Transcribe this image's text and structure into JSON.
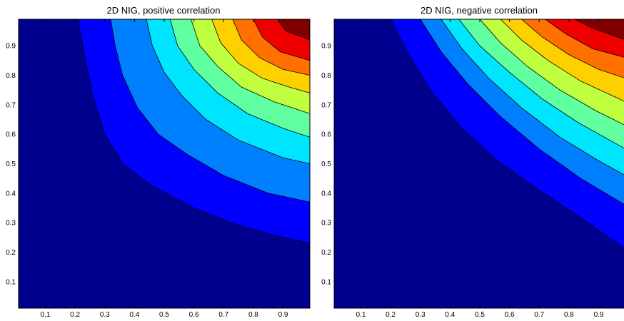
{
  "chart_data": [
    {
      "type": "contour",
      "title": "2D NIG, positive correlation",
      "xlabel": "",
      "ylabel": "",
      "xlim": [
        0.01,
        0.99
      ],
      "ylim": [
        0.01,
        0.99
      ],
      "x_ticks": [
        "0.1",
        "0.2",
        "0.3",
        "0.4",
        "0.5",
        "0.6",
        "0.7",
        "0.8",
        "0.9"
      ],
      "y_ticks": [
        "0.1",
        "0.2",
        "0.3",
        "0.4",
        "0.5",
        "0.6",
        "0.7",
        "0.8",
        "0.9"
      ],
      "colormap": "jet",
      "level_colors": [
        "#00008f",
        "#0000ff",
        "#0080ff",
        "#00e5ff",
        "#60ffa0",
        "#c0ff40",
        "#ffd000",
        "#ff7000",
        "#ee0000",
        "#800000"
      ],
      "contours": [
        {
          "level": 1,
          "points": [
            [
              0.21,
              0.99
            ],
            [
              0.235,
              0.85
            ],
            [
              0.26,
              0.73
            ],
            [
              0.3,
              0.6
            ],
            [
              0.36,
              0.5
            ],
            [
              0.45,
              0.43
            ],
            [
              0.6,
              0.35
            ],
            [
              0.75,
              0.29
            ],
            [
              0.9,
              0.25
            ],
            [
              0.99,
              0.23
            ]
          ]
        },
        {
          "level": 2,
          "points": [
            [
              0.32,
              0.99
            ],
            [
              0.335,
              0.9
            ],
            [
              0.36,
              0.8
            ],
            [
              0.41,
              0.69
            ],
            [
              0.48,
              0.6
            ],
            [
              0.58,
              0.53
            ],
            [
              0.7,
              0.46
            ],
            [
              0.85,
              0.4
            ],
            [
              0.99,
              0.37
            ]
          ]
        },
        {
          "level": 3,
          "points": [
            [
              0.44,
              0.99
            ],
            [
              0.46,
              0.9
            ],
            [
              0.5,
              0.81
            ],
            [
              0.56,
              0.73
            ],
            [
              0.64,
              0.65
            ],
            [
              0.75,
              0.58
            ],
            [
              0.9,
              0.52
            ],
            [
              0.99,
              0.5
            ]
          ]
        },
        {
          "level": 4,
          "points": [
            [
              0.52,
              0.99
            ],
            [
              0.545,
              0.9
            ],
            [
              0.6,
              0.82
            ],
            [
              0.68,
              0.74
            ],
            [
              0.78,
              0.67
            ],
            [
              0.9,
              0.62
            ],
            [
              0.99,
              0.59
            ]
          ]
        },
        {
          "level": 5,
          "points": [
            [
              0.59,
              0.99
            ],
            [
              0.62,
              0.9
            ],
            [
              0.68,
              0.83
            ],
            [
              0.76,
              0.76
            ],
            [
              0.87,
              0.71
            ],
            [
              0.99,
              0.67
            ]
          ]
        },
        {
          "level": 6,
          "points": [
            [
              0.66,
              0.99
            ],
            [
              0.69,
              0.91
            ],
            [
              0.75,
              0.84
            ],
            [
              0.83,
              0.79
            ],
            [
              0.92,
              0.76
            ],
            [
              0.99,
              0.74
            ]
          ]
        },
        {
          "level": 7,
          "points": [
            [
              0.73,
              0.99
            ],
            [
              0.76,
              0.92
            ],
            [
              0.82,
              0.86
            ],
            [
              0.9,
              0.82
            ],
            [
              0.99,
              0.8
            ]
          ]
        },
        {
          "level": 8,
          "points": [
            [
              0.8,
              0.99
            ],
            [
              0.83,
              0.93
            ],
            [
              0.89,
              0.88
            ],
            [
              0.99,
              0.85
            ]
          ]
        },
        {
          "level": 9,
          "points": [
            [
              0.88,
              0.99
            ],
            [
              0.91,
              0.95
            ],
            [
              0.99,
              0.92
            ]
          ]
        }
      ]
    },
    {
      "type": "contour",
      "title": "2D NIG, negative correlation",
      "xlabel": "",
      "ylabel": "",
      "xlim": [
        0.01,
        0.99
      ],
      "ylim": [
        0.01,
        0.99
      ],
      "x_ticks": [
        "0.1",
        "0.2",
        "0.3",
        "0.4",
        "0.5",
        "0.6",
        "0.7",
        "0.8",
        "0.9"
      ],
      "y_ticks": [
        "0.1",
        "0.2",
        "0.3",
        "0.4",
        "0.5",
        "0.6",
        "0.7",
        "0.8",
        "0.9"
      ],
      "colormap": "jet",
      "level_colors": [
        "#00008f",
        "#0000ff",
        "#0080ff",
        "#00e5ff",
        "#60ffa0",
        "#c0ff40",
        "#ffd000",
        "#ff7000",
        "#ee0000",
        "#800000"
      ],
      "contours": [
        {
          "level": 1,
          "points": [
            [
              0.2,
              0.99
            ],
            [
              0.26,
              0.87
            ],
            [
              0.34,
              0.74
            ],
            [
              0.44,
              0.62
            ],
            [
              0.56,
              0.51
            ],
            [
              0.7,
              0.41
            ],
            [
              0.85,
              0.31
            ],
            [
              0.99,
              0.21
            ]
          ]
        },
        {
          "level": 2,
          "points": [
            [
              0.3,
              0.99
            ],
            [
              0.37,
              0.88
            ],
            [
              0.46,
              0.77
            ],
            [
              0.57,
              0.66
            ],
            [
              0.7,
              0.55
            ],
            [
              0.84,
              0.45
            ],
            [
              0.99,
              0.36
            ]
          ]
        },
        {
          "level": 3,
          "points": [
            [
              0.37,
              0.99
            ],
            [
              0.44,
              0.89
            ],
            [
              0.53,
              0.79
            ],
            [
              0.64,
              0.69
            ],
            [
              0.77,
              0.59
            ],
            [
              0.9,
              0.51
            ],
            [
              0.99,
              0.46
            ]
          ]
        },
        {
          "level": 4,
          "points": [
            [
              0.43,
              0.99
            ],
            [
              0.5,
              0.9
            ],
            [
              0.6,
              0.81
            ],
            [
              0.71,
              0.72
            ],
            [
              0.83,
              0.64
            ],
            [
              0.99,
              0.55
            ]
          ]
        },
        {
          "level": 5,
          "points": [
            [
              0.5,
              0.99
            ],
            [
              0.57,
              0.91
            ],
            [
              0.66,
              0.83
            ],
            [
              0.77,
              0.75
            ],
            [
              0.89,
              0.68
            ],
            [
              0.99,
              0.63
            ]
          ]
        },
        {
          "level": 6,
          "points": [
            [
              0.57,
              0.99
            ],
            [
              0.64,
              0.92
            ],
            [
              0.73,
              0.85
            ],
            [
              0.84,
              0.78
            ],
            [
              0.99,
              0.71
            ]
          ]
        },
        {
          "level": 7,
          "points": [
            [
              0.64,
              0.99
            ],
            [
              0.71,
              0.93
            ],
            [
              0.8,
              0.87
            ],
            [
              0.9,
              0.82
            ],
            [
              0.99,
              0.79
            ]
          ]
        },
        {
          "level": 8,
          "points": [
            [
              0.72,
              0.99
            ],
            [
              0.79,
              0.94
            ],
            [
              0.88,
              0.89
            ],
            [
              0.99,
              0.86
            ]
          ]
        },
        {
          "level": 9,
          "points": [
            [
              0.82,
              0.99
            ],
            [
              0.88,
              0.96
            ],
            [
              0.99,
              0.92
            ]
          ]
        }
      ]
    }
  ]
}
